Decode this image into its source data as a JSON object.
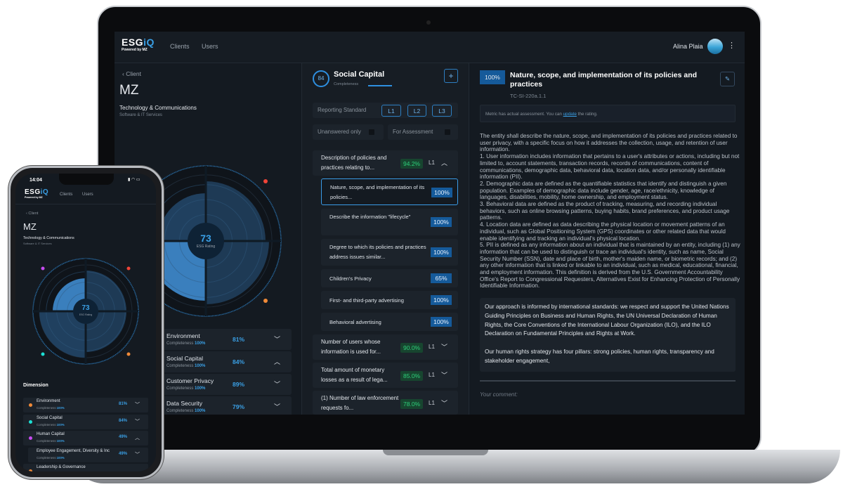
{
  "app": {
    "logo": "ESGiQ",
    "powered_by": "Powered by MZ",
    "nav": [
      "Clients",
      "Users"
    ],
    "user": "Alina Plaia"
  },
  "client": {
    "back": "Client",
    "name": "MZ",
    "sector": "Technology & Communications",
    "industry": "Software & IT Services",
    "esg_rating": "73",
    "esg_label": "ESG Rating"
  },
  "radar": {
    "quadrants": [
      {
        "dimension": "top-left",
        "color": "#c64bf0"
      },
      {
        "dimension": "top-right",
        "color": "#f04438"
      },
      {
        "dimension": "bottom-right",
        "color": "#f08a38"
      },
      {
        "dimension": "bottom-left",
        "color": "#1de0d4"
      }
    ]
  },
  "dimensions": [
    {
      "label": "Environment",
      "completeness": "Completeness",
      "comp_value": "100%",
      "pct": "81%",
      "color": "#f08a38",
      "expanded": false
    },
    {
      "label": "Social Capital",
      "completeness": "Completeness",
      "comp_value": "100%",
      "pct": "84%",
      "color": "#1de0d4",
      "expanded": true
    },
    {
      "label": "Customer Privacy",
      "completeness": "Completeness",
      "comp_value": "100%",
      "pct": "89%",
      "expanded": false
    },
    {
      "label": "Data Security",
      "completeness": "Completeness",
      "comp_value": "100%",
      "pct": "79%",
      "expanded": false
    }
  ],
  "phone": {
    "time": "14:04",
    "dimension_title": "Dimension",
    "rows": [
      {
        "label": "Environment",
        "completeness": "Completeness",
        "comp_value": "100%",
        "pct": "81%",
        "color": "#f08a38"
      },
      {
        "label": "Social Capital",
        "completeness": "Completeness",
        "comp_value": "100%",
        "pct": "84%",
        "color": "#1de0d4"
      },
      {
        "label": "Human Capital",
        "completeness": "Completeness",
        "comp_value": "100%",
        "pct": "49%",
        "color": "#c64bf0"
      },
      {
        "label": "Employee Engagement, Diversity & Inc",
        "completeness": "Completeness",
        "comp_value": "100%",
        "pct": "49%"
      },
      {
        "label": "Leadership & Governance",
        "color": "#f08a38"
      }
    ]
  },
  "topic": {
    "score": "84",
    "title": "Social Capital",
    "subtitle": "Completeness",
    "add": "+",
    "reporting_standard": "Reporting Standard",
    "levels": [
      "L1",
      "L2",
      "L3"
    ],
    "filters": [
      "Unanswered only",
      "For Assessment"
    ],
    "groups": [
      {
        "label": "Description of policies and practices relating to...",
        "pct": "94.2%",
        "level": "L1",
        "expanded": true,
        "items": [
          {
            "label": "Nature, scope, and implementation of its policies...",
            "pct": "100%",
            "selected": true
          },
          {
            "label": "Describe the information \"lifecycle\"",
            "pct": "100%"
          },
          {
            "label": "Degree to which its policies and practices address issues similar...",
            "pct": "100%"
          },
          {
            "label": "Children's Privacy",
            "pct": "65%"
          },
          {
            "label": "First- and third-party advertising",
            "pct": "100%"
          },
          {
            "label": "Behavioral advertising",
            "pct": "100%"
          }
        ]
      },
      {
        "label": "Number of users whose information is used for...",
        "pct": "90.0%",
        "level": "L1"
      },
      {
        "label": "Total amount of monetary losses as a result of lega...",
        "pct": "85.0%",
        "level": "L1"
      },
      {
        "label": "(1) Number of law enforcement requests fo...",
        "pct": "78.0%",
        "level": "L1"
      }
    ]
  },
  "metric": {
    "score": "100%",
    "title": "Nature, scope, and implementation of its policies and practices",
    "code": "TC-SI-220a.1.1",
    "note_pre": "Metric has actual assessment. You can ",
    "note_link": "update",
    "note_post": " the rating.",
    "description": "The entity shall describe the nature, scope, and implementation of its policies and practices related to user privacy, with a specific focus on how it addresses the collection, usage, and retention of user information.\n1. User information includes information that pertains to a user's attributes or actions, including but not limited to, account statements, transaction records, records of communications, content of communications, demographic data, behavioral data, location data, and/or personally identifiable information (PII).\n2. Demographic data are defined as the quantifiable statistics that identify and distinguish a given population. Examples of demographic data include gender, age, race/ethnicity, knowledge of languages, disabilities, mobility, home ownership, and employment status.\n3. Behavioral data are defined as the product of tracking, measuring, and recording individual behaviors, such as online browsing patterns, buying habits, brand preferences, and product usage patterns.\n4. Location data are defined as data describing the physical location or movement patterns of an individual, such as Global Positioning System (GPS) coordinates or other related data that would enable identifying and tracking an individual's physical location.\n5. PII is defined as any information about an individual that is maintained by an entity, including (1) any information that can be used to distinguish or trace an individual's identity, such as name, Social Security Number (SSN), date and place of birth, mother's maiden name, or biometric records; and (2) any other information that is linked or linkable to an individual, such as medical, educational, financial, and employment information. This definition is derived from the U.S. Government Accountability Office's Report to Congressional Requesters, Alternatives Exist for Enhancing Protection of Personally Identifiable Information.",
    "answer_p1": "Our approach is informed by international standards: we respect and support the United Nations Guiding Principles on Business and Human Rights, the UN Universal Declaration of Human Rights, the Core Conventions of the International Labour Organization (ILO), and the ILO Declaration on Fundamental Principles and Rights at Work.",
    "answer_p2": "Our human rights strategy has four pillars: strong policies, human rights, transparency and stakeholder engagement,",
    "comment_placeholder": "Your comment:"
  },
  "colors": {
    "accent": "#3aa0e6",
    "background": "#141a21",
    "card": "#1c232b",
    "success": "#2ecf7a"
  }
}
